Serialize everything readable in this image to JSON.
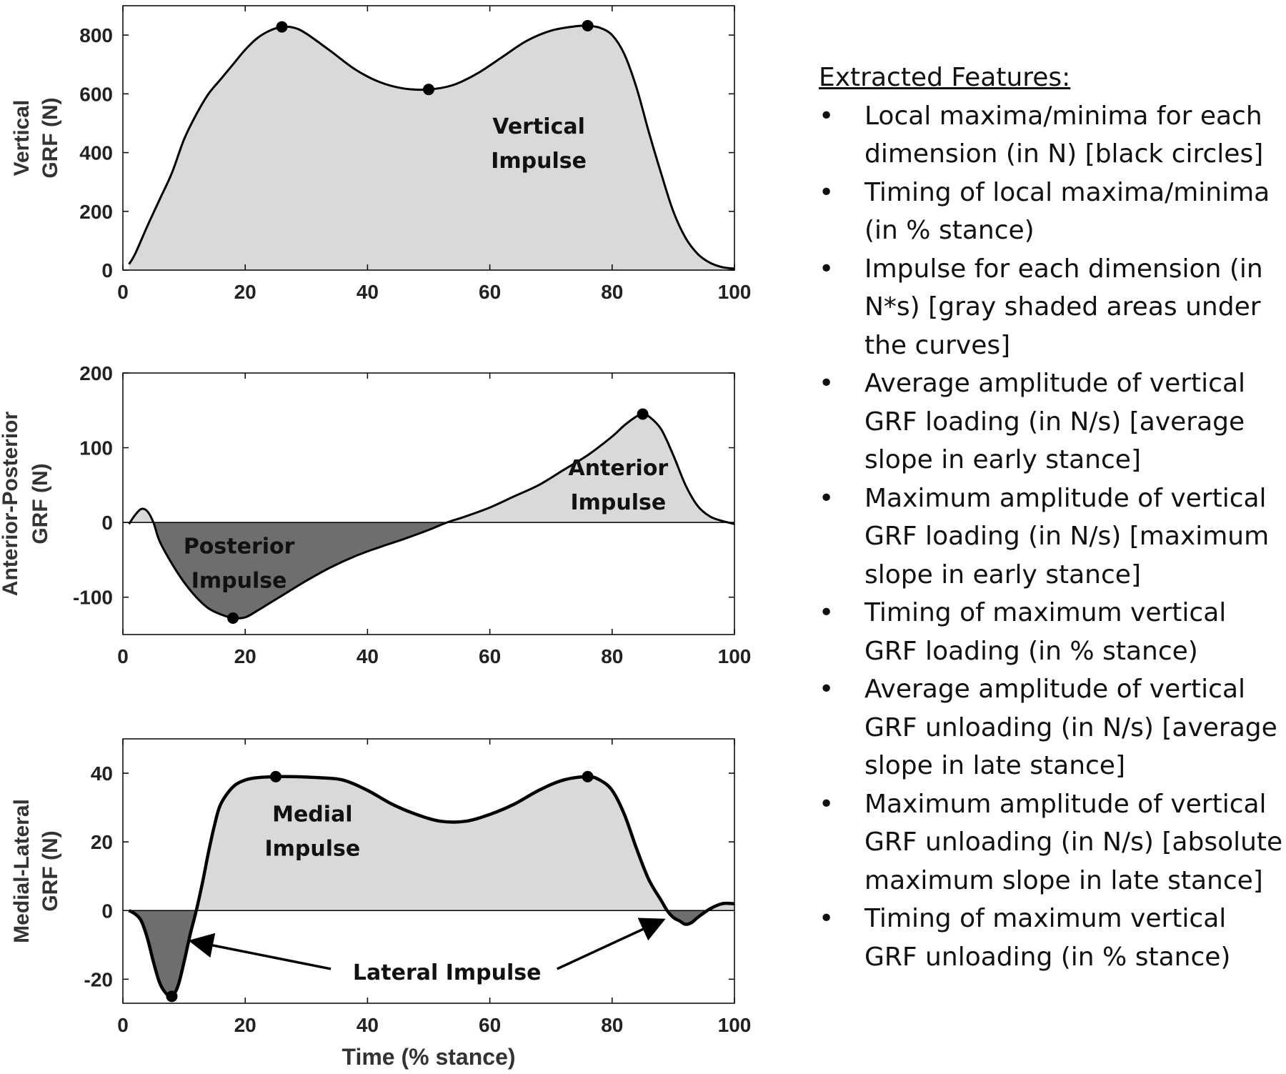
{
  "features": {
    "heading": "Extracted Features:",
    "items": [
      "Local maxima/minima for each dimension (in N) [black circles]",
      "Timing of local maxima/minima (in % stance)",
      "Impulse for each dimension (in N*s) [gray shaded areas under the curves]",
      "Average amplitude of vertical GRF loading (in N/s) [average slope in early stance]",
      "Maximum amplitude of vertical GRF loading (in N/s) [maximum slope in early stance]",
      "Timing of maximum vertical GRF loading (in % stance)",
      "Average amplitude of vertical GRF unloading (in N/s) [average slope in late stance]",
      "Maximum amplitude of vertical GRF unloading (in N/s) [absolute maximum slope in late stance]",
      "Timing of maximum vertical GRF unloading (in % stance)"
    ]
  },
  "colors": {
    "light_fill": "#d9d9d9",
    "dark_fill": "#6e6e6e",
    "line": "#000000"
  },
  "chart_data": [
    {
      "type": "area",
      "ylabel": [
        "Vertical",
        "GRF (N)"
      ],
      "xlabel": "",
      "xlim": [
        0,
        100
      ],
      "ylim": [
        0,
        900
      ],
      "xticks": [
        0,
        20,
        40,
        60,
        80,
        100
      ],
      "yticks": [
        0,
        200,
        400,
        600,
        800
      ],
      "series": [
        {
          "x": [
            1,
            2,
            4,
            6,
            8,
            10,
            12,
            14,
            16,
            18,
            20,
            22,
            24,
            26,
            28,
            30,
            34,
            38,
            42,
            46,
            50,
            54,
            58,
            62,
            66,
            70,
            74,
            76,
            78,
            80,
            82,
            84,
            86,
            88,
            90,
            92,
            94,
            96,
            98,
            100
          ],
          "y": [
            20,
            55,
            150,
            240,
            330,
            445,
            530,
            600,
            650,
            700,
            750,
            790,
            815,
            828,
            825,
            805,
            745,
            683,
            640,
            618,
            615,
            630,
            670,
            725,
            780,
            815,
            830,
            832,
            825,
            800,
            735,
            620,
            470,
            330,
            200,
            110,
            55,
            25,
            10,
            5
          ]
        }
      ],
      "points": [
        {
          "x": 26,
          "y": 828
        },
        {
          "x": 50,
          "y": 615
        },
        {
          "x": 76,
          "y": 832
        }
      ],
      "annotations": [
        {
          "lines": [
            "Vertical",
            "Impulse"
          ],
          "x": 68,
          "y": 430
        }
      ],
      "grid": false
    },
    {
      "type": "area",
      "ylabel": [
        "Anterior-Posterior",
        "GRF (N)"
      ],
      "xlabel": "",
      "xlim": [
        0,
        100
      ],
      "ylim": [
        -150,
        200
      ],
      "xticks": [
        0,
        20,
        40,
        60,
        80,
        100
      ],
      "yticks": [
        -100,
        0,
        100,
        200
      ],
      "series": [
        {
          "x": [
            1,
            2,
            3,
            4,
            5,
            6,
            8,
            10,
            12,
            14,
            16,
            18,
            20,
            22,
            24,
            26,
            30,
            34,
            38,
            42,
            46,
            50,
            53,
            56,
            60,
            64,
            68,
            72,
            76,
            80,
            82,
            84,
            85,
            86,
            88,
            90,
            92,
            94,
            96,
            98,
            100
          ],
          "y": [
            -2,
            10,
            18,
            15,
            0,
            -25,
            -55,
            -80,
            -100,
            -115,
            -123,
            -128,
            -127,
            -118,
            -108,
            -98,
            -78,
            -60,
            -45,
            -33,
            -22,
            -10,
            0,
            8,
            20,
            35,
            50,
            70,
            90,
            115,
            130,
            142,
            145,
            142,
            125,
            90,
            50,
            22,
            8,
            2,
            -2
          ]
        }
      ],
      "points": [
        {
          "x": 18,
          "y": -128
        },
        {
          "x": 85,
          "y": 145
        }
      ],
      "annotations": [
        {
          "lines": [
            "Posterior",
            "Impulse"
          ],
          "x": 19,
          "y": -55
        },
        {
          "lines": [
            "Anterior",
            "Impulse"
          ],
          "x": 81,
          "y": 50
        }
      ],
      "grid": false
    },
    {
      "type": "area",
      "ylabel": [
        "Medial-Lateral",
        "GRF (N)"
      ],
      "xlabel": "Time (% stance)",
      "xlim": [
        0,
        100
      ],
      "ylim": [
        -27,
        50
      ],
      "xticks": [
        0,
        20,
        40,
        60,
        80,
        100
      ],
      "yticks": [
        -20,
        0,
        20,
        40
      ],
      "series": [
        {
          "x": [
            1,
            2,
            3,
            4,
            5,
            6,
            7,
            8,
            9,
            10,
            11,
            12,
            13,
            14,
            15,
            16,
            18,
            20,
            22,
            25,
            28,
            32,
            36,
            40,
            44,
            48,
            52,
            56,
            60,
            64,
            68,
            72,
            76,
            78,
            80,
            82,
            84,
            86,
            88,
            89,
            90,
            91,
            92,
            93,
            94,
            96,
            98,
            100
          ],
          "y": [
            0,
            -1,
            -3,
            -8,
            -15,
            -21,
            -24,
            -25,
            -22,
            -15,
            -7,
            0,
            8,
            17,
            25,
            31,
            36,
            38,
            38.7,
            39,
            39,
            38.7,
            38,
            35,
            31,
            28,
            26,
            26,
            28,
            31,
            35,
            38,
            39,
            38,
            35,
            28,
            18,
            9,
            3,
            0,
            -2,
            -3,
            -4,
            -3.5,
            -2,
            0.5,
            2,
            2
          ]
        }
      ],
      "points": [
        {
          "x": 8,
          "y": -25
        },
        {
          "x": 25,
          "y": 39
        },
        {
          "x": 76,
          "y": 39
        }
      ],
      "annotations": [
        {
          "lines": [
            "Medial",
            "Impulse"
          ],
          "x": 31,
          "y": 23
        },
        {
          "lines": [
            "Lateral Impulse"
          ],
          "x": 53,
          "y": -18
        }
      ],
      "arrows": [
        {
          "from": [
            34,
            -17
          ],
          "to": [
            11.5,
            -9
          ]
        },
        {
          "from": [
            71,
            -17
          ],
          "to": [
            88,
            -3
          ]
        }
      ],
      "grid": false
    }
  ]
}
